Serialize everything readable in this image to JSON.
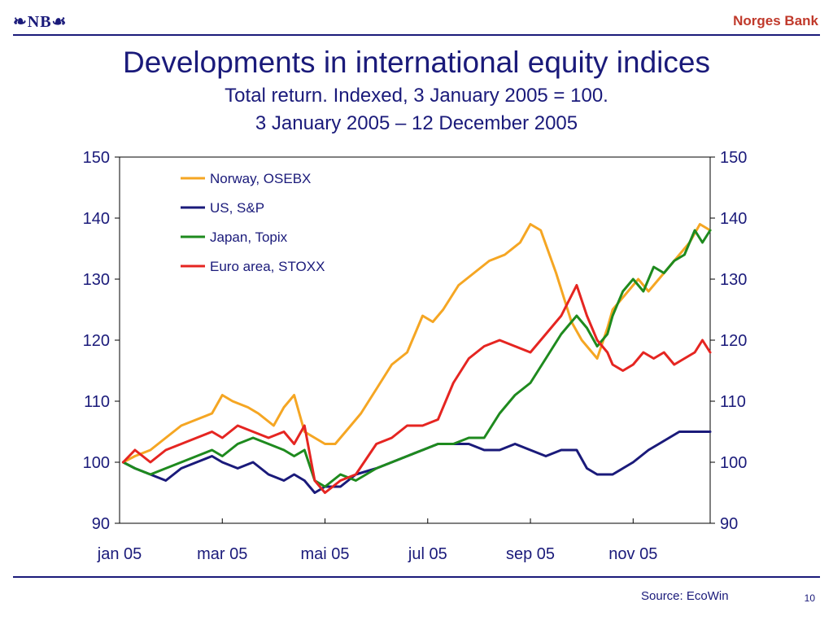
{
  "header": {
    "logo_text": "❧NB☙",
    "bank_name": "Norges Bank"
  },
  "footer": {
    "source": "Source: EcoWin",
    "page_number": "10"
  },
  "chart_data": {
    "type": "line",
    "title": "Developments in international equity indices",
    "subtitle_lines": [
      "Total return. Indexed, 3 January 2005 = 100.",
      "3 January 2005 – 12 December 2005"
    ],
    "xlabel": "",
    "ylabel": "",
    "ylim": [
      90,
      150
    ],
    "yticks": [
      90,
      100,
      110,
      120,
      130,
      140,
      150
    ],
    "secondary_y_axis": true,
    "x_unit": "months since 1 January 2005",
    "xlim": [
      0,
      11.5
    ],
    "xtick_positions": [
      0,
      2,
      4,
      6,
      8,
      10
    ],
    "xtick_labels": [
      "jan 05",
      "mar 05",
      "mai 05",
      "jul 05",
      "sep 05",
      "nov 05"
    ],
    "grid": false,
    "legend_position": "top-left",
    "colors": {
      "osebx": "#f5a623",
      "sp": "#1a1a7a",
      "topix": "#1e8a1e",
      "stoxx": "#e52521"
    },
    "series": [
      {
        "name": "Norway, OSEBX",
        "key": "osebx",
        "x": [
          0.07,
          0.3,
          0.6,
          0.9,
          1.2,
          1.5,
          1.8,
          2.0,
          2.2,
          2.5,
          2.7,
          3.0,
          3.2,
          3.4,
          3.6,
          3.8,
          4.0,
          4.2,
          4.4,
          4.7,
          5.0,
          5.3,
          5.6,
          5.9,
          6.1,
          6.3,
          6.6,
          6.9,
          7.2,
          7.5,
          7.8,
          8.0,
          8.2,
          8.5,
          8.8,
          9.0,
          9.1,
          9.3,
          9.5,
          9.6,
          9.7,
          9.9,
          10.1,
          10.3,
          10.6,
          10.9,
          11.1,
          11.3,
          11.5
        ],
        "values": [
          100,
          101,
          102,
          104,
          106,
          107,
          108,
          111,
          110,
          109,
          108,
          106,
          109,
          111,
          105,
          104,
          103,
          103,
          105,
          108,
          112,
          116,
          118,
          124,
          123,
          125,
          129,
          131,
          133,
          134,
          136,
          139,
          138,
          131,
          123,
          120,
          119,
          117,
          122,
          125,
          126,
          128,
          130,
          128,
          131,
          134,
          136,
          139,
          138
        ]
      },
      {
        "name": "US, S&P",
        "key": "sp",
        "x": [
          0.07,
          0.3,
          0.6,
          0.9,
          1.2,
          1.5,
          1.8,
          2.0,
          2.3,
          2.6,
          2.9,
          3.2,
          3.4,
          3.6,
          3.8,
          4.0,
          4.3,
          4.6,
          5.0,
          5.3,
          5.6,
          5.9,
          6.2,
          6.5,
          6.8,
          7.1,
          7.4,
          7.7,
          8.0,
          8.3,
          8.6,
          8.9,
          9.1,
          9.3,
          9.6,
          9.8,
          10.0,
          10.3,
          10.5,
          10.7,
          10.9,
          11.1,
          11.3,
          11.5
        ],
        "values": [
          100,
          99,
          98,
          97,
          99,
          100,
          101,
          100,
          99,
          100,
          98,
          97,
          98,
          97,
          95,
          96,
          96,
          98,
          99,
          100,
          101,
          102,
          103,
          103,
          103,
          102,
          102,
          103,
          102,
          101,
          102,
          102,
          99,
          98,
          98,
          99,
          100,
          102,
          103,
          104,
          105,
          105,
          105,
          105
        ]
      },
      {
        "name": "Japan, Topix",
        "key": "topix",
        "x": [
          0.07,
          0.3,
          0.6,
          0.9,
          1.2,
          1.5,
          1.8,
          2.0,
          2.3,
          2.6,
          2.9,
          3.2,
          3.4,
          3.6,
          3.8,
          4.0,
          4.3,
          4.6,
          5.0,
          5.3,
          5.6,
          5.9,
          6.2,
          6.5,
          6.8,
          7.1,
          7.4,
          7.7,
          8.0,
          8.3,
          8.6,
          8.9,
          9.1,
          9.3,
          9.5,
          9.6,
          9.8,
          10.0,
          10.2,
          10.4,
          10.6,
          10.8,
          11.0,
          11.2,
          11.35,
          11.5
        ],
        "values": [
          100,
          99,
          98,
          99,
          100,
          101,
          102,
          101,
          103,
          104,
          103,
          102,
          101,
          102,
          97,
          96,
          98,
          97,
          99,
          100,
          101,
          102,
          103,
          103,
          104,
          104,
          108,
          111,
          113,
          117,
          121,
          124,
          122,
          119,
          121,
          124,
          128,
          130,
          128,
          132,
          131,
          133,
          134,
          138,
          136,
          138
        ]
      },
      {
        "name": "Euro area, STOXX",
        "key": "stoxx",
        "x": [
          0.07,
          0.3,
          0.6,
          0.9,
          1.2,
          1.5,
          1.8,
          2.0,
          2.3,
          2.6,
          2.9,
          3.2,
          3.4,
          3.6,
          3.8,
          4.0,
          4.3,
          4.6,
          5.0,
          5.3,
          5.6,
          5.9,
          6.2,
          6.5,
          6.8,
          7.1,
          7.4,
          7.7,
          8.0,
          8.3,
          8.6,
          8.9,
          9.1,
          9.3,
          9.5,
          9.6,
          9.8,
          10.0,
          10.2,
          10.4,
          10.6,
          10.8,
          11.0,
          11.2,
          11.35,
          11.5
        ],
        "values": [
          100,
          102,
          100,
          102,
          103,
          104,
          105,
          104,
          106,
          105,
          104,
          105,
          103,
          106,
          97,
          95,
          97,
          98,
          103,
          104,
          106,
          106,
          107,
          113,
          117,
          119,
          120,
          119,
          118,
          121,
          124,
          129,
          124,
          120,
          118,
          116,
          115,
          116,
          118,
          117,
          118,
          116,
          117,
          118,
          120,
          118
        ]
      }
    ]
  }
}
